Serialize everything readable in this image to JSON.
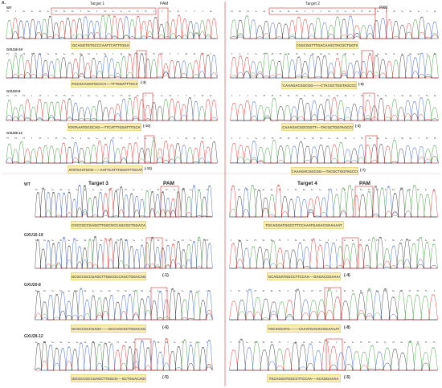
{
  "panel_letter": "A.",
  "top_left": {
    "target_label": "Target 1",
    "pam_label": "PAM",
    "rows": [
      {
        "label": "WT",
        "bases": "A T G C G C A G G T G T G C C C A A T T C A T T T G G A T T T G C A T T",
        "seq": "ATGCGCAGGTGTGCCCAATTCATTTGGATTTG",
        "indel": ""
      },
      {
        "label": "GXU16-19",
        "bases": "A A A T G C G C A G G T G T G C C C A A T T G G A T T T G C A T T G C",
        "seq": "AAATGCGCAGGTGCCCA----TTTGGATTTGCATTT",
        "indel": "(-3)"
      },
      {
        "label": "GXU20-8",
        "bases": "A A A T A T A A A T G C G C A G G T T C A T T T G G A T T T G C A T T",
        "seq": "AAATATAAATGCGCAG----TTCATTTGGATTTGCATTT",
        "indel": "(-10)"
      },
      {
        "label": "GXU28-12",
        "bases": "A A A T A T A A A T G C G A A T T C A T T T G G A T T T G C A T T T G",
        "seq": "AAATATAAATGCG------AATTCATTTGGATTTGCATTT",
        "indel": "(-11)"
      }
    ]
  },
  "top_right": {
    "target_label": "Target 2",
    "pam_label": "PAM",
    "rows": [
      {
        "bases": "A G A C G G C G G T T T G A C A A G C T A C G C T G G T A G C C",
        "seq": "AGACGGCGGTTTGACAAGCTACGCTGGTAGCC",
        "indel": ""
      },
      {
        "bases": "T T T C A A A G A C G G C G G C T A C G C T G G T A G C C C A A",
        "seq": "TTTCAAAGACGGCGG-------CTACGCTGGTAGCCCAA",
        "indel": "(-6)"
      },
      {
        "bases": "T T T C A A A G A C G G C G G T A C G C T G G T A G C C C A A",
        "seq": "TTTCAAAGACGGCGGTT----TACGCTGGTAGCCCAA",
        "indel": "(-3)"
      },
      {
        "bases": "T T T C A A A G A C G G C G G T A C G C T G G T A G C C C A A",
        "seq": "TTTCAAAGACGGCGG----TACGCTGGTAGCCCAA",
        "indel": "(-7)"
      }
    ]
  },
  "bottom_left": {
    "target_label": "Target 3",
    "pam_label": "PAM",
    "rows": [
      {
        "label": "WT",
        "bases": "G G C G C C G C C G A G C T T G G C G C C A G C G C T G G A C A G C",
        "seq": "GGCGCCGCCGAGCTTGGCGCCAGCGCTGGACAGC",
        "indel": ""
      },
      {
        "label": "GXU16-19",
        "bases": "G G C G C C G C C G A G C T T G G C G C C A G C G C T G G A C A G C",
        "seq": "GGCGCCGCCGAGCTTGGCGCCAGCTGGACAGC",
        "indel": "(-1)"
      },
      {
        "label": "GXU20-8",
        "bases": "G G C G C C G C C G A G C G C C A G C G C T G G A C A G C",
        "seq": "GGCGCCGCCGAGC------GCCAGCGCTGGACAGC",
        "indel": "(-6)"
      },
      {
        "label": "GXU28-12",
        "bases": "G G C G C C G C C G A G C T T G G C G C C T G G A C A G C",
        "seq": "GGCGCCGCCGAGCTTGGCG----GCTGGACAGC",
        "indel": "(-5)"
      }
    ]
  },
  "bottom_right": {
    "target_label": "Target 4",
    "pam_label": "PAM",
    "rows": [
      {
        "bases": "T G C A G G A T G G C C T T C C A A A T G A G A C G G A A A A T",
        "seq": "TGCAGGATGGCCTTCCAAATGAGACGGAAAAT",
        "indel": ""
      },
      {
        "bases": "T G C A G G A T G G C C T T C C A A A T G A G A C G G A A A A",
        "seq": "TGCAGGATGGCCTTCCAA----GAGACGGAAAA",
        "indel": "(-4)"
      },
      {
        "bases": "T G C A G G A T G C A A A T G A G A C G G A A A A T",
        "seq": "TGCAGGATG--------CAAATGAGACGGAAAAT",
        "indel": "(-8)"
      },
      {
        "bases": "T G C A G G A T G G C C T T C C A A A C A G G A A A A",
        "seq": "TGCAGGATGGCCTTCCAA----ACAGGAAAA",
        "indel": "(-5)"
      }
    ]
  },
  "trace_colors": {
    "A": "#2e8b2e",
    "C": "#2a52be",
    "G": "#222222",
    "T": "#d62020"
  },
  "box_color": "#fbeeb5",
  "highlight_color": "#cc3333"
}
